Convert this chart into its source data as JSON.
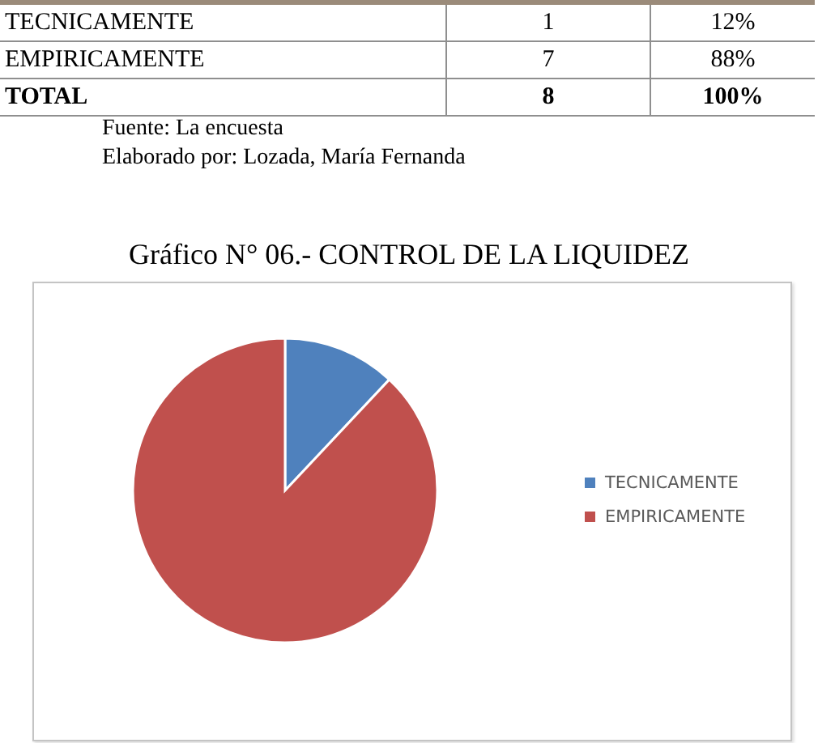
{
  "chart_data": [
    {
      "type": "other",
      "categories": [
        "TECNICAMENTE",
        "EMPIRICAMENTE",
        "TOTAL"
      ],
      "series": [
        {
          "values": [
            1,
            7,
            8
          ],
          "value_labels": [
            "1",
            "7",
            "8"
          ]
        },
        {
          "values": [
            12,
            88,
            100
          ],
          "value_labels": [
            "12%",
            "88%",
            "100%"
          ]
        }
      ],
      "annotations": [
        "Fuente: La encuesta",
        "Elaborado por: Lozada, María Fernanda"
      ]
    },
    {
      "type": "pie",
      "title": "Gráfico N° 06.- CONTROL DE LA LIQUIDEZ",
      "categories": [
        "TECNICAMENTE",
        "EMPIRICAMENTE"
      ],
      "values": [
        12,
        88
      ],
      "colors": [
        "#4f81bd",
        "#c0504d"
      ],
      "legend": "right"
    }
  ]
}
